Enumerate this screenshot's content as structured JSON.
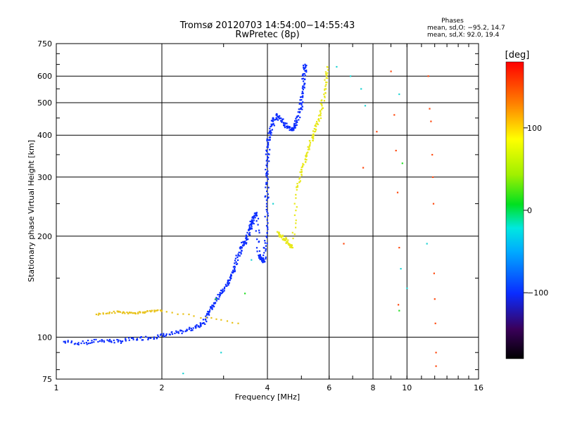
{
  "chart_data": {
    "type": "scatter",
    "title_line1": "Tromsø 20120703 14:54:00−14:55:43",
    "title_line2": "RwPretec (8p)",
    "xlabel": "Frequency [MHz]",
    "ylabel": "Stationary phase Virtual Height [km]",
    "x_scale": "log",
    "y_scale": "log",
    "xlim": [
      1,
      16
    ],
    "ylim": [
      75,
      750
    ],
    "x_ticks": [
      1,
      2,
      4,
      6,
      8,
      10,
      16
    ],
    "x_ticklabels": [
      "1",
      "2",
      "4",
      "6",
      "8",
      "10",
      "16"
    ],
    "x_gridlines": [
      2,
      4,
      6,
      8,
      10
    ],
    "y_ticks": [
      75,
      100,
      200,
      300,
      400,
      500,
      600,
      750
    ],
    "y_ticklabels": [
      "75",
      "100",
      "200",
      "300",
      "400",
      "500",
      "600",
      "750"
    ],
    "y_gridlines": [
      100,
      200,
      300,
      400,
      500,
      600
    ],
    "grid": true,
    "stats": {
      "heading": "Phases",
      "line_o": "mean, sd,O: −95.2, 14.7",
      "line_x": "mean, sd,X:  92.0, 19.4"
    },
    "colorbar": {
      "label": "[deg]",
      "range": [
        -180,
        180
      ],
      "ticks": [
        100,
        0,
        -100
      ],
      "ticklabels": [
        "100",
        "0",
        "−100"
      ],
      "colormap": "rainbow"
    },
    "series": [
      {
        "trace": "O",
        "phase_deg": -95,
        "color": "#0a2cff",
        "points": [
          [
            1.05,
            97
          ],
          [
            1.2,
            96
          ],
          [
            1.35,
            98
          ],
          [
            1.5,
            97
          ],
          [
            1.7,
            99
          ],
          [
            1.9,
            100
          ],
          [
            2.1,
            102
          ],
          [
            2.3,
            104
          ],
          [
            2.5,
            107
          ],
          [
            2.62,
            110
          ],
          [
            2.72,
            118
          ],
          [
            2.82,
            126
          ],
          [
            2.92,
            134
          ],
          [
            3.05,
            142
          ],
          [
            3.15,
            150
          ],
          [
            3.22,
            160
          ],
          [
            3.3,
            175
          ],
          [
            3.4,
            188
          ],
          [
            3.5,
            196
          ],
          [
            3.55,
            210
          ],
          [
            3.6,
            218
          ],
          [
            3.65,
            226
          ],
          [
            3.72,
            234
          ],
          [
            3.78,
            175
          ],
          [
            3.85,
            172
          ],
          [
            3.92,
            168
          ],
          [
            3.97,
            200
          ],
          [
            3.98,
            250
          ],
          [
            3.99,
            300
          ],
          [
            4.0,
            345
          ],
          [
            4.02,
            380
          ],
          [
            4.08,
            410
          ],
          [
            4.15,
            440
          ],
          [
            4.25,
            460
          ],
          [
            4.4,
            440
          ],
          [
            4.55,
            425
          ],
          [
            4.7,
            415
          ],
          [
            4.82,
            435
          ],
          [
            4.95,
            470
          ],
          [
            5.0,
            510
          ],
          [
            5.05,
            560
          ],
          [
            5.1,
            610
          ],
          [
            5.12,
            650
          ]
        ],
        "cluster_spread": 0.012
      },
      {
        "trace": "X",
        "phase_deg": 110,
        "color": "#e8e81a",
        "points": [
          [
            4.3,
            205
          ],
          [
            4.4,
            200
          ],
          [
            4.5,
            195
          ],
          [
            4.6,
            190
          ],
          [
            4.72,
            185
          ],
          [
            4.85,
            275
          ],
          [
            5.0,
            310
          ],
          [
            5.15,
            345
          ],
          [
            5.3,
            380
          ],
          [
            5.45,
            410
          ],
          [
            5.6,
            445
          ],
          [
            5.72,
            490
          ],
          [
            5.85,
            560
          ],
          [
            5.92,
            640
          ]
        ],
        "cluster_spread": 0.01
      },
      {
        "trace": "E",
        "phase_deg": 110,
        "color": "#e8c21a",
        "points": [
          [
            1.3,
            117
          ],
          [
            1.5,
            119
          ],
          [
            1.65,
            118
          ],
          [
            1.8,
            119
          ],
          [
            2.0,
            120
          ],
          [
            3.3,
            110
          ]
        ],
        "cluster_spread": 0.006
      },
      {
        "trace": "scatter-high",
        "phase_deg": 150,
        "color": "#ff4a10",
        "points": [
          [
            6.6,
            190
          ],
          [
            7.5,
            320
          ],
          [
            8.2,
            410
          ],
          [
            9.0,
            620
          ],
          [
            9.2,
            460
          ],
          [
            9.3,
            360
          ],
          [
            9.4,
            270
          ],
          [
            9.5,
            185
          ],
          [
            9.45,
            125
          ],
          [
            11.5,
            600
          ],
          [
            11.6,
            480
          ],
          [
            11.7,
            440
          ],
          [
            11.8,
            350
          ],
          [
            11.85,
            300
          ],
          [
            11.9,
            250
          ],
          [
            11.95,
            155
          ],
          [
            12.0,
            130
          ],
          [
            12.05,
            110
          ],
          [
            12.1,
            90
          ],
          [
            12.1,
            82
          ]
        ],
        "cluster_spread": 0.0
      },
      {
        "trace": "scatter-mid",
        "phase_deg": -10,
        "color": "#22d4d4",
        "points": [
          [
            6.9,
            600
          ],
          [
            7.4,
            550
          ],
          [
            7.6,
            490
          ],
          [
            9.5,
            530
          ],
          [
            9.6,
            160
          ],
          [
            10.0,
            140
          ],
          [
            4.15,
            250
          ],
          [
            3.6,
            170
          ],
          [
            2.95,
            90
          ],
          [
            2.3,
            78
          ],
          [
            6.3,
            640
          ],
          [
            11.4,
            190
          ]
        ],
        "cluster_spread": 0.0
      },
      {
        "trace": "scatter-low",
        "phase_deg": 60,
        "color": "#2ae02a",
        "points": [
          [
            9.5,
            120
          ],
          [
            3.45,
            135
          ],
          [
            2.85,
            130
          ],
          [
            9.7,
            330
          ]
        ],
        "cluster_spread": 0.0
      }
    ]
  }
}
